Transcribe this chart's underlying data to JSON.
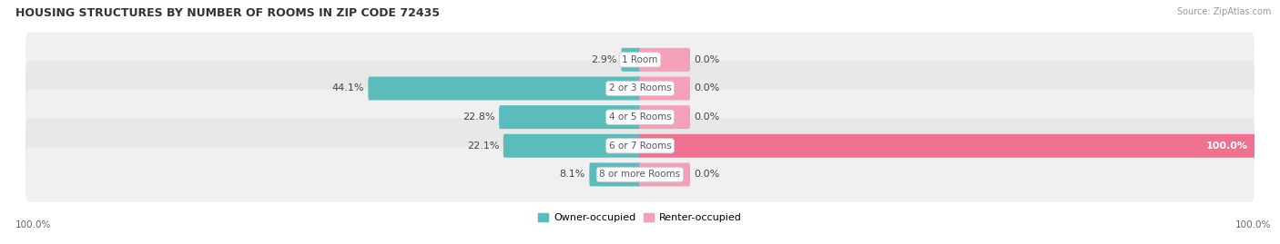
{
  "title": "HOUSING STRUCTURES BY NUMBER OF ROOMS IN ZIP CODE 72435",
  "source": "Source: ZipAtlas.com",
  "categories": [
    "1 Room",
    "2 or 3 Rooms",
    "4 or 5 Rooms",
    "6 or 7 Rooms",
    "8 or more Rooms"
  ],
  "owner_pct": [
    2.9,
    44.1,
    22.8,
    22.1,
    8.1
  ],
  "renter_pct": [
    0.0,
    0.0,
    0.0,
    100.0,
    0.0
  ],
  "renter_small_pct": 8.0,
  "owner_color": "#5bbcbc",
  "renter_color_small": "#f4a0b8",
  "renter_color_large": "#f07090",
  "figsize": [
    14.06,
    2.69
  ],
  "dpi": 100,
  "owner_label": "Owner-occupied",
  "renter_label": "Renter-occupied",
  "title_fontsize": 9,
  "label_fontsize": 8,
  "tick_fontsize": 7.5,
  "source_fontsize": 7,
  "background_color": "#ffffff",
  "row_bg_even": "#f0f0f0",
  "row_bg_odd": "#e8e8e8",
  "center_label_bg": "#ffffff",
  "center_label_color": "#555566"
}
